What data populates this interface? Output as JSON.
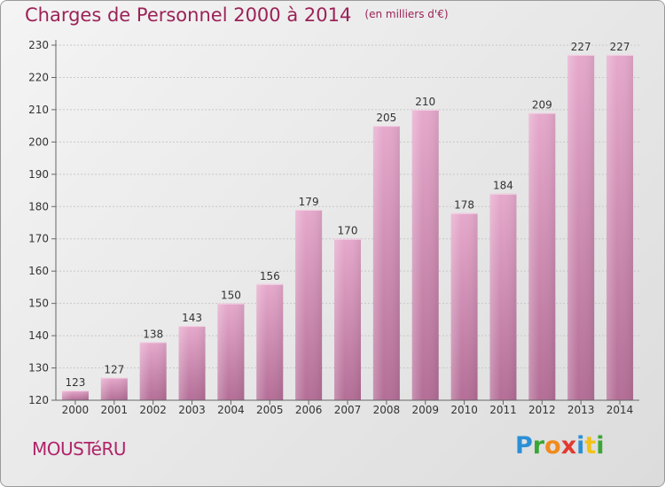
{
  "title": "Charges de Personnel 2000 à 2014",
  "subtitle": "(en milliers d'€)",
  "commune": "MOUSTéRU",
  "logo": {
    "letters": [
      {
        "ch": "P",
        "color": "#2b8fd6"
      },
      {
        "ch": "r",
        "color": "#3aa635"
      },
      {
        "ch": "o",
        "color": "#f08a1c"
      },
      {
        "ch": "x",
        "color": "#e23a2f"
      },
      {
        "ch": "i",
        "color": "#2b8fd6"
      },
      {
        "ch": "t",
        "color": "#f2c21a"
      },
      {
        "ch": "i",
        "color": "#3aa635"
      }
    ]
  },
  "colors": {
    "bar_light": "#e6a9cc",
    "bar_dark": "#b76f99",
    "title": "#9b2257"
  },
  "chart_data": {
    "type": "bar",
    "categories": [
      "2000",
      "2001",
      "2002",
      "2003",
      "2004",
      "2005",
      "2006",
      "2007",
      "2008",
      "2009",
      "2010",
      "2011",
      "2012",
      "2013",
      "2014"
    ],
    "values": [
      123,
      127,
      138,
      143,
      150,
      156,
      179,
      170,
      205,
      210,
      178,
      184,
      209,
      227,
      227
    ],
    "ylim": [
      120,
      230
    ],
    "yticks": [
      120,
      130,
      140,
      150,
      160,
      170,
      180,
      190,
      200,
      210,
      220,
      230
    ],
    "grid": true,
    "xlabel": "",
    "ylabel": ""
  }
}
